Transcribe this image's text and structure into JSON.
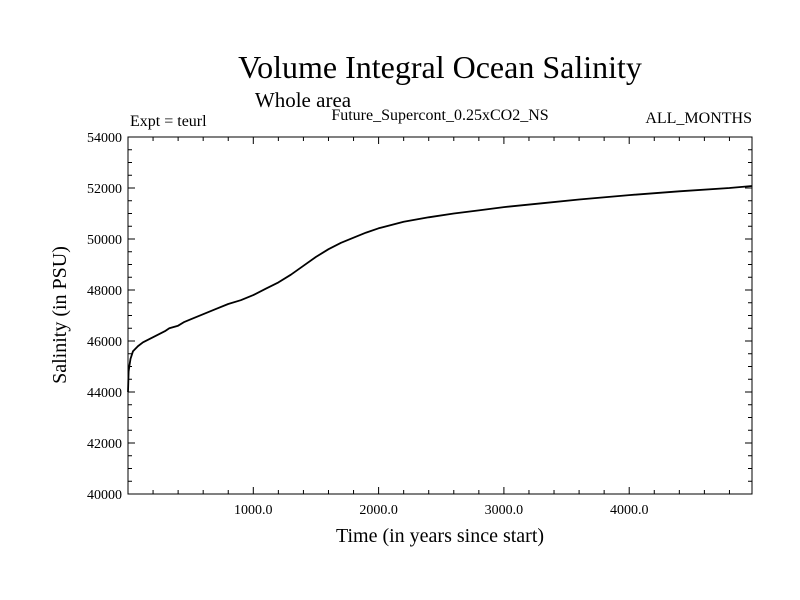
{
  "chart_data": {
    "type": "line",
    "title": "Volume Integral Ocean Salinity",
    "subtitle": "Whole area",
    "header_left": "Expt = teurl",
    "header_center": "Future_Supercont_0.25xCO2_NS",
    "header_right": "ALL_MONTHS",
    "xlabel": "Time (in years since start)",
    "ylabel": "Salinity (in PSU)",
    "xlim": [
      0,
      4980
    ],
    "ylim": [
      40000,
      54000
    ],
    "x_ticks": [
      1000,
      2000,
      3000,
      4000
    ],
    "x_tick_labels": [
      "1000.0",
      "2000.0",
      "3000.0",
      "4000.0"
    ],
    "y_ticks": [
      40000,
      42000,
      44000,
      46000,
      48000,
      50000,
      52000,
      54000
    ],
    "y_tick_labels": [
      "40000",
      "42000",
      "44000",
      "46000",
      "48000",
      "50000",
      "52000",
      "54000"
    ],
    "grid": false,
    "legend": "none",
    "series_color": "#000000",
    "series": [
      {
        "x": [
          0,
          5,
          10,
          20,
          40,
          80,
          120,
          200,
          300,
          330,
          400,
          450,
          500,
          600,
          700,
          800,
          900,
          1000,
          1100,
          1200,
          1300,
          1400,
          1500,
          1600,
          1700,
          1800,
          1900,
          2000,
          2200,
          2400,
          2600,
          2800,
          3000,
          3300,
          3600,
          4000,
          4400,
          4800,
          4980
        ],
        "y": [
          44000,
          44800,
          45000,
          45300,
          45600,
          45800,
          45950,
          46150,
          46400,
          46500,
          46600,
          46750,
          46850,
          47050,
          47250,
          47450,
          47600,
          47800,
          48050,
          48300,
          48600,
          48950,
          49300,
          49600,
          49850,
          50050,
          50250,
          50420,
          50680,
          50850,
          51000,
          51120,
          51250,
          51400,
          51550,
          51720,
          51870,
          52000,
          52080
        ]
      }
    ]
  }
}
